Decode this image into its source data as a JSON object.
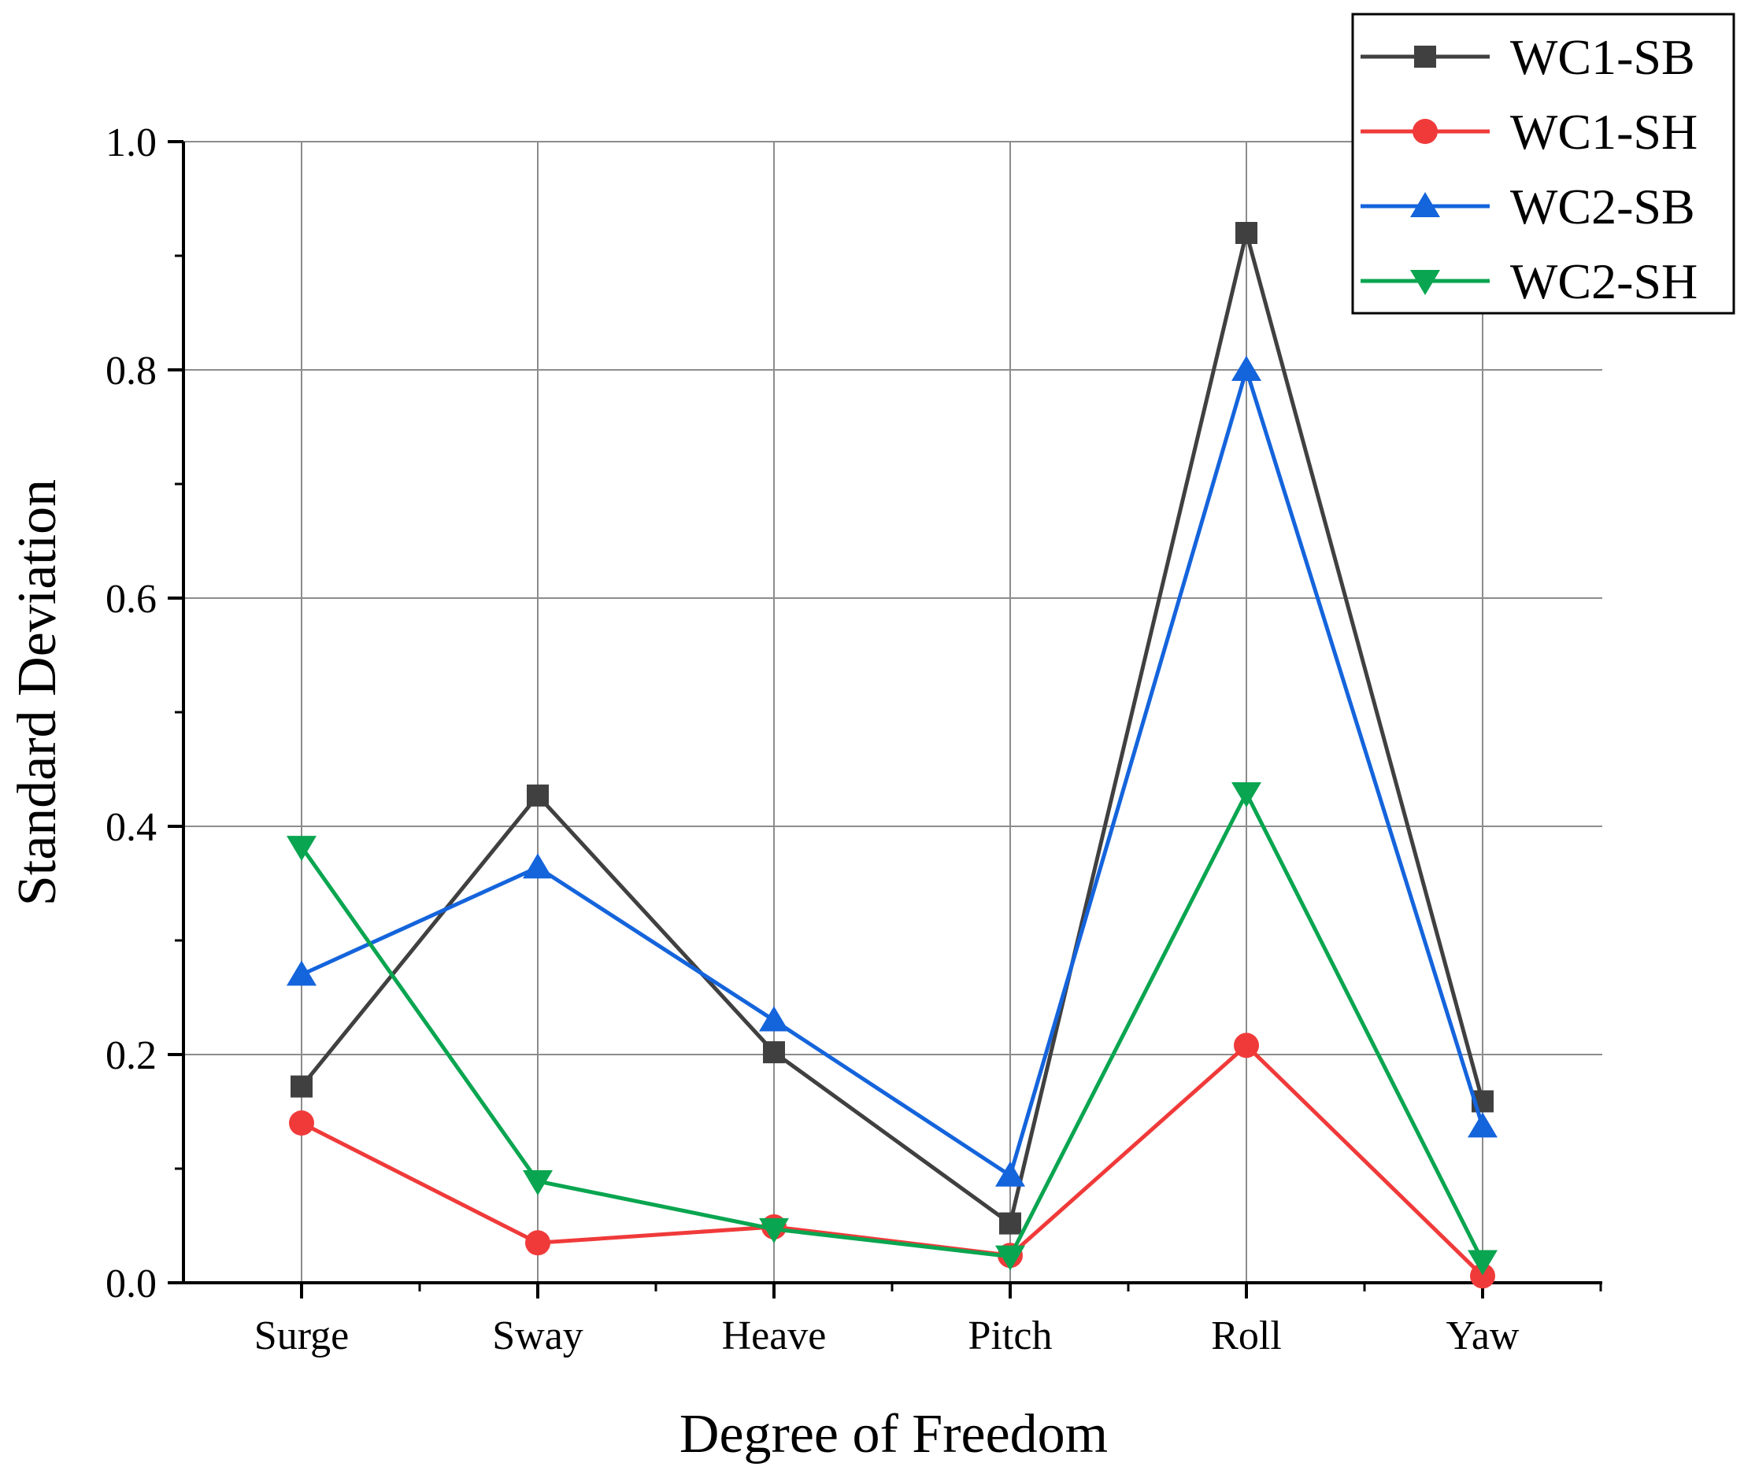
{
  "chart_data": {
    "type": "line",
    "title": "",
    "xlabel": "Degree of Freedom",
    "ylabel": "Standard Deviation",
    "categories": [
      "Surge",
      "Sway",
      "Heave",
      "Pitch",
      "Roll",
      "Yaw"
    ],
    "ylim": [
      0.0,
      1.0
    ],
    "yticks": [
      "0.0",
      "0.2",
      "0.4",
      "0.6",
      "0.8",
      "1.0"
    ],
    "grid": true,
    "legend_position": "top-right",
    "series": [
      {
        "name": "WC1-SB",
        "marker": "square",
        "color": "#404040",
        "values": [
          0.172,
          0.427,
          0.202,
          0.052,
          0.92,
          0.159
        ]
      },
      {
        "name": "WC1-SH",
        "marker": "circle",
        "color": "#f03a3a",
        "values": [
          0.14,
          0.035,
          0.049,
          0.024,
          0.208,
          0.006
        ]
      },
      {
        "name": "WC2-SB",
        "marker": "triangle-up",
        "color": "#1464dc",
        "values": [
          0.27,
          0.364,
          0.23,
          0.094,
          0.8,
          0.137
        ]
      },
      {
        "name": "WC2-SH",
        "marker": "triangle-down",
        "color": "#0aa550",
        "values": [
          0.382,
          0.089,
          0.047,
          0.023,
          0.429,
          0.019
        ]
      }
    ]
  }
}
